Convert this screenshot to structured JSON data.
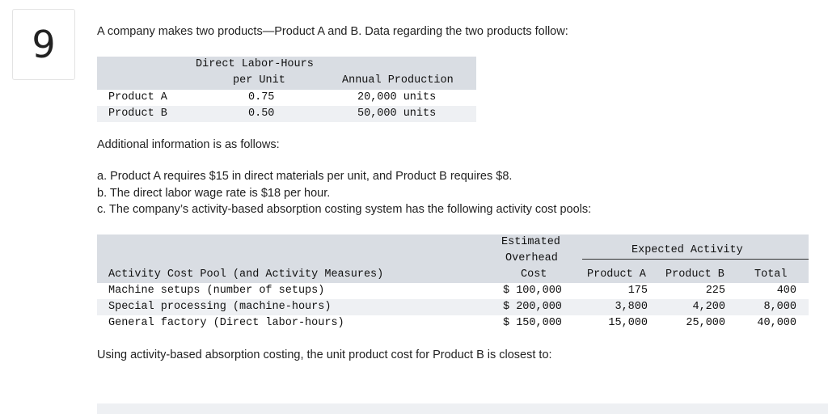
{
  "question_number": "9",
  "intro": "A company makes two products—Product A and B. Data regarding the two products follow:",
  "table1": {
    "headers": {
      "dlh_line1": "Direct Labor-Hours",
      "dlh_line2": "per Unit",
      "annual": "Annual Production"
    },
    "rows": [
      {
        "product": "Product A",
        "dlh": "0.75",
        "annual": "20,000 units"
      },
      {
        "product": "Product B",
        "dlh": "0.50",
        "annual": "50,000 units"
      }
    ]
  },
  "additional": "Additional information is as follows:",
  "items": [
    "a. Product A requires $15 in direct materials per unit, and Product B requires $8.",
    "b. The direct labor wage rate is $18 per hour.",
    "c. The company’s activity-based absorption costing system has the following activity cost pools:"
  ],
  "table2": {
    "headers": {
      "pool": "Activity Cost Pool (and Activity Measures)",
      "est1": "Estimated",
      "est2": "Overhead",
      "est3": "Cost",
      "expected": "Expected Activity",
      "prodA": "Product A",
      "prodB": "Product B",
      "total": "Total"
    },
    "rows": [
      {
        "pool": "Machine setups (number of setups)",
        "cost": "$ 100,000",
        "a": "175",
        "b": "225",
        "total": "400"
      },
      {
        "pool": "Special processing (machine-hours)",
        "cost": "$ 200,000",
        "a": "3,800",
        "b": "4,200",
        "total": "8,000"
      },
      {
        "pool": "General factory (Direct labor-hours)",
        "cost": "$ 150,000",
        "a": "15,000",
        "b": "25,000",
        "total": "40,000"
      }
    ]
  },
  "question": "Using activity-based absorption costing, the unit product cost for Product B is closest to:"
}
